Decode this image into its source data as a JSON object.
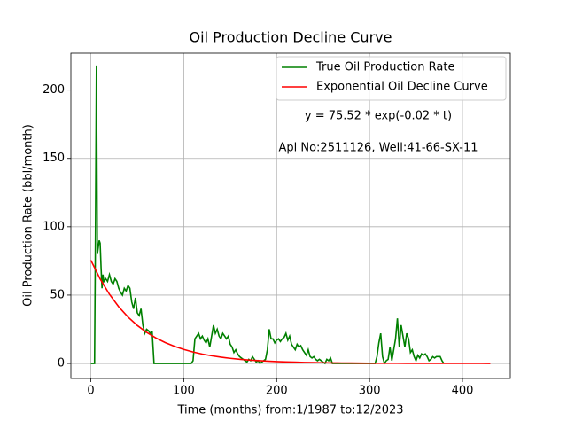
{
  "chart_data": {
    "type": "line",
    "title": "Oil Production Decline Curve",
    "x_label": "Time (months) from:1/1987 to:12/2023",
    "y_label": "Oil Production Rate (bbl/month)",
    "annotations": [
      "y = 75.52 * exp(-0.02 * t)",
      "Api No:2511126, Well:41-66-SX-11"
    ],
    "xlim": [
      -21.5,
      451.5
    ],
    "ylim": [
      -11,
      227
    ],
    "xticks": [
      0,
      100,
      200,
      300,
      400
    ],
    "yticks": [
      0,
      50,
      100,
      150,
      200
    ],
    "grid": true,
    "legend": "upper right",
    "series": [
      {
        "name": "True Oil Production Rate",
        "color": "#008000",
        "x": [
          0,
          3,
          4,
          5,
          6,
          7,
          8,
          9,
          10,
          11,
          12,
          13,
          14,
          16,
          18,
          20,
          22,
          24,
          26,
          28,
          30,
          32,
          34,
          36,
          38,
          40,
          42,
          44,
          46,
          48,
          50,
          52,
          54,
          56,
          58,
          60,
          62,
          64,
          66,
          68,
          70,
          80,
          90,
          100,
          108,
          110,
          112,
          114,
          116,
          118,
          120,
          122,
          124,
          126,
          128,
          130,
          132,
          134,
          136,
          138,
          140,
          142,
          144,
          146,
          148,
          150,
          152,
          154,
          156,
          158,
          160,
          162,
          164,
          166,
          168,
          170,
          172,
          174,
          176,
          178,
          180,
          182,
          184,
          186,
          188,
          190,
          192,
          194,
          196,
          198,
          200,
          202,
          204,
          206,
          208,
          210,
          212,
          214,
          216,
          218,
          220,
          222,
          224,
          226,
          228,
          230,
          232,
          234,
          236,
          238,
          240,
          242,
          244,
          246,
          248,
          250,
          252,
          254,
          256,
          258,
          260,
          270,
          280,
          290,
          300,
          306,
          308,
          310,
          312,
          314,
          316,
          318,
          320,
          322,
          324,
          326,
          328,
          330,
          332,
          334,
          336,
          338,
          340,
          342,
          344,
          346,
          348,
          350,
          352,
          354,
          356,
          358,
          360,
          362,
          364,
          366,
          368,
          370,
          372,
          374,
          376,
          378,
          380
        ],
        "values": [
          0,
          0,
          0,
          100,
          218,
          80,
          85,
          90,
          88,
          70,
          55,
          65,
          60,
          62,
          60,
          65,
          60,
          58,
          62,
          60,
          55,
          52,
          50,
          55,
          53,
          57,
          55,
          45,
          40,
          48,
          37,
          35,
          40,
          28,
          22,
          25,
          24,
          22,
          23,
          0,
          0,
          0,
          0,
          0,
          0,
          2,
          18,
          20,
          22,
          18,
          20,
          17,
          15,
          18,
          12,
          20,
          28,
          22,
          25,
          20,
          18,
          22,
          20,
          18,
          20,
          14,
          12,
          8,
          10,
          7,
          5,
          4,
          3,
          2,
          1,
          3,
          2,
          5,
          3,
          1,
          2,
          0,
          1,
          2,
          3,
          10,
          25,
          18,
          18,
          15,
          17,
          18,
          16,
          18,
          19,
          22,
          17,
          20,
          14,
          12,
          10,
          14,
          12,
          13,
          10,
          8,
          6,
          10,
          5,
          4,
          5,
          3,
          2,
          3,
          2,
          1,
          0,
          3,
          2,
          4,
          0,
          0,
          0,
          0,
          0,
          0,
          5,
          15,
          22,
          5,
          0,
          2,
          3,
          12,
          2,
          10,
          18,
          33,
          12,
          28,
          20,
          12,
          22,
          18,
          8,
          10,
          5,
          2,
          6,
          4,
          7,
          6,
          7,
          5,
          2,
          3,
          5,
          4,
          5,
          5,
          5,
          2,
          0
        ]
      },
      {
        "name": "Exponential Oil Decline Curve",
        "color": "#ff0000",
        "x": [
          0,
          10,
          20,
          30,
          40,
          50,
          60,
          70,
          80,
          90,
          100,
          110,
          120,
          130,
          140,
          150,
          160,
          170,
          180,
          190,
          200,
          210,
          220,
          230,
          240,
          250,
          260,
          270,
          280,
          290,
          300,
          310,
          320,
          330,
          340,
          350,
          360,
          370,
          380,
          390,
          400,
          410,
          420,
          430
        ],
        "values": [
          75.52,
          61.83,
          50.62,
          41.45,
          33.93,
          27.78,
          22.75,
          18.62,
          15.25,
          12.48,
          10.22,
          8.37,
          6.85,
          5.61,
          4.59,
          3.76,
          3.08,
          2.52,
          2.06,
          1.69,
          1.38,
          1.13,
          0.93,
          0.76,
          0.62,
          0.51,
          0.42,
          0.34,
          0.28,
          0.23,
          0.18,
          0.15,
          0.12,
          0.1,
          0.08,
          0.07,
          0.06,
          0.05,
          0.04,
          0.03,
          0.03,
          0.02,
          0.02,
          0.01
        ]
      }
    ]
  }
}
